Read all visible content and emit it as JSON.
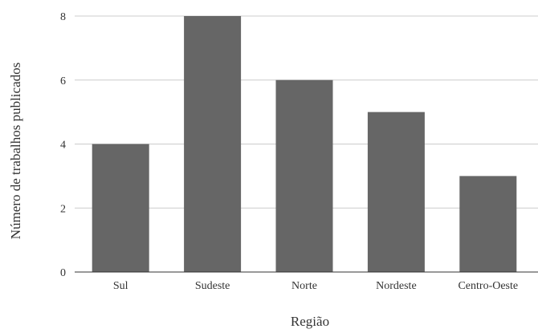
{
  "chart_data": {
    "type": "bar",
    "categories": [
      "Sul",
      "Sudeste",
      "Norte",
      "Nordeste",
      "Centro-Oeste"
    ],
    "values": [
      4,
      8,
      6,
      5,
      3
    ],
    "xlabel": "Região",
    "ylabel": "Número de trabalhos publicados",
    "ylim": [
      0,
      8
    ],
    "yticks": [
      0,
      2,
      4,
      6,
      8
    ],
    "grid": true,
    "colors": {
      "bar": "#666666",
      "grid": "#cccccc",
      "axis": "#333333",
      "text": "#333333"
    }
  }
}
